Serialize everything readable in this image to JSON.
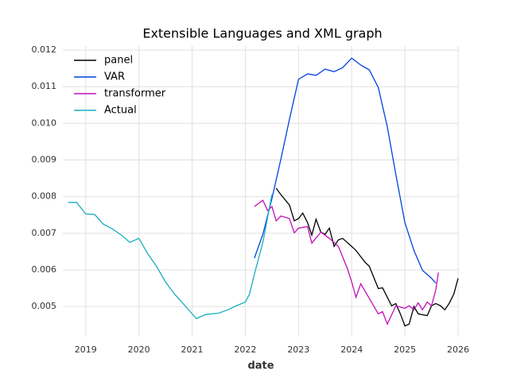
{
  "chart_data": {
    "type": "line",
    "title": "Extensible Languages and XML graph",
    "x_label": "date",
    "xlim": [
      2018.57,
      2026
    ],
    "xticks": [
      2019,
      2020,
      2021,
      2022,
      2023,
      2024,
      2025,
      2026
    ],
    "ylim": [
      0.00418,
      0.01211
    ],
    "yticks": [
      0.005,
      0.006,
      0.007,
      0.008,
      0.009,
      {
        "value": 0.01,
        "label": "0.010"
      },
      0.011,
      0.012
    ],
    "grid": true,
    "legend": "upper-left",
    "series": [
      {
        "name": "panel",
        "color": "#000000",
        "x": [
          2022.58,
          2022.67,
          2022.83,
          2022.92,
          2023.0,
          2023.08,
          2023.17,
          2023.25,
          2023.33,
          2023.42,
          2023.5,
          2023.58,
          2023.67,
          2023.75,
          2023.83,
          2024.0,
          2024.08,
          2024.25,
          2024.33,
          2024.5,
          2024.58,
          2024.75,
          2024.83,
          2024.92,
          2025.0,
          2025.08,
          2025.17,
          2025.25,
          2025.42,
          2025.5,
          2025.58,
          2025.67,
          2025.75,
          2025.83,
          2025.92,
          2026.0
        ],
        "values": [
          0.00823,
          0.00805,
          0.00777,
          0.00734,
          0.0074,
          0.00755,
          0.00729,
          0.00695,
          0.00738,
          0.00703,
          0.00697,
          0.00714,
          0.00664,
          0.00682,
          0.00686,
          0.00664,
          0.00653,
          0.00621,
          0.0061,
          0.00549,
          0.00551,
          0.00502,
          0.00508,
          0.00478,
          0.00447,
          0.00452,
          0.005,
          0.0048,
          0.00475,
          0.00502,
          0.00508,
          0.00502,
          0.00491,
          0.00508,
          0.00534,
          0.00577
        ]
      },
      {
        "name": "VAR",
        "color": "#0343df",
        "x": [
          2022.17,
          2022.33,
          2022.5,
          2022.67,
          2022.83,
          2023.0,
          2023.17,
          2023.33,
          2023.5,
          2023.67,
          2023.83,
          2024.0,
          2024.17,
          2024.33,
          2024.5,
          2024.67,
          2024.83,
          2025.0,
          2025.17,
          2025.33,
          2025.5,
          2025.58
        ],
        "values": [
          0.00632,
          0.00697,
          0.00794,
          0.00903,
          0.01011,
          0.0112,
          0.01135,
          0.01131,
          0.01148,
          0.01141,
          0.01152,
          0.01178,
          0.01159,
          0.01146,
          0.01098,
          0.0099,
          0.0086,
          0.00729,
          0.00653,
          0.00599,
          0.00577,
          0.00564
        ]
      },
      {
        "name": "transformer",
        "color": "#c20fb8",
        "x": [
          2022.17,
          2022.33,
          2022.42,
          2022.5,
          2022.58,
          2022.67,
          2022.83,
          2022.92,
          2023.0,
          2023.17,
          2023.25,
          2023.42,
          2023.58,
          2023.75,
          2023.92,
          2024.0,
          2024.08,
          2024.17,
          2024.5,
          2024.58,
          2024.67,
          2024.83,
          2025.0,
          2025.08,
          2025.17,
          2025.25,
          2025.33,
          2025.42,
          2025.5,
          2025.58,
          2025.63
        ],
        "values": [
          0.00773,
          0.0079,
          0.00762,
          0.00773,
          0.00734,
          0.00747,
          0.0074,
          0.00701,
          0.00714,
          0.00718,
          0.00673,
          0.00703,
          0.00686,
          0.00664,
          0.00603,
          0.00567,
          0.00525,
          0.00562,
          0.0048,
          0.00486,
          0.00452,
          0.00502,
          0.00495,
          0.00502,
          0.00491,
          0.0051,
          0.00491,
          0.00512,
          0.00502,
          0.00545,
          0.00593
        ]
      },
      {
        "name": "Actual",
        "color": "#17aebf",
        "x": [
          2018.67,
          2018.83,
          2018.95,
          2019.0,
          2019.17,
          2019.33,
          2019.5,
          2019.67,
          2019.83,
          2020.0,
          2020.17,
          2020.33,
          2020.5,
          2020.67,
          2020.83,
          2021.0,
          2021.08,
          2021.25,
          2021.5,
          2021.67,
          2021.83,
          2022.0,
          2022.08,
          2022.17,
          2022.33,
          2022.5
        ],
        "values": [
          0.00784,
          0.00784,
          0.00762,
          0.00753,
          0.00751,
          0.00725,
          0.00712,
          0.00695,
          0.00675,
          0.00686,
          0.00643,
          0.0061,
          0.00567,
          0.00534,
          0.00508,
          0.0048,
          0.00467,
          0.00478,
          0.00482,
          0.00491,
          0.00502,
          0.00512,
          0.00534,
          0.00588,
          0.00675,
          0.00805
        ]
      }
    ]
  }
}
